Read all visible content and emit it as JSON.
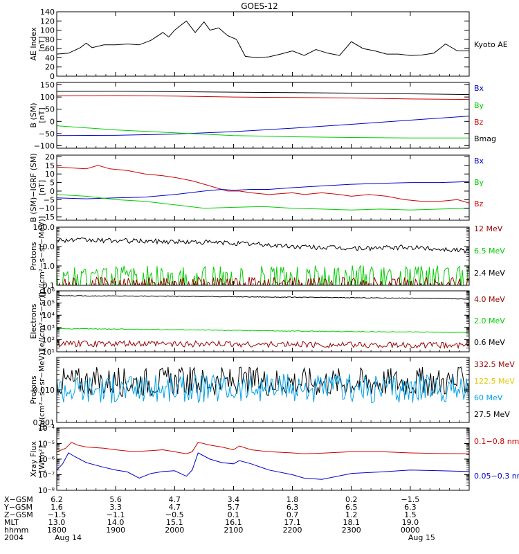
{
  "chart_data": {
    "title": "GOES-12",
    "type": "line",
    "panels": [
      {
        "id": "ae",
        "ylabel": [
          "AE Index",
          "[nT]"
        ],
        "scale": "linear",
        "ylim": [
          0,
          140
        ],
        "ticks": [
          0,
          20,
          40,
          60,
          80,
          100,
          120,
          140
        ],
        "tick_labels": [
          "0",
          "20",
          "40",
          "60",
          "80",
          "100",
          "120",
          "140"
        ],
        "legend": [
          {
            "name": "Kyoto AE",
            "color": "#000000"
          }
        ],
        "series": [
          {
            "name": "Kyoto AE",
            "color": "#000000",
            "x": [
              0,
              0.2,
              0.4,
              0.5,
              0.6,
              0.8,
              1.0,
              1.2,
              1.4,
              1.6,
              1.8,
              1.9,
              2.0,
              2.1,
              2.2,
              2.35,
              2.5,
              2.6,
              2.75,
              2.9,
              3.05,
              3.2,
              3.4,
              3.6,
              3.8,
              4.0,
              4.2,
              4.4,
              4.6,
              4.8,
              5.0,
              5.2,
              5.4,
              5.6,
              5.8,
              6.0,
              6.2,
              6.4,
              6.6,
              6.8,
              7.0
            ],
            "y": [
              48,
              50,
              62,
              72,
              62,
              68,
              68,
              70,
              68,
              78,
              95,
              85,
              100,
              110,
              120,
              95,
              118,
              100,
              105,
              88,
              80,
              43,
              40,
              42,
              48,
              55,
              45,
              58,
              50,
              45,
              75,
              60,
              55,
              48,
              48,
              45,
              46,
              50,
              70,
              55,
              55
            ]
          }
        ]
      },
      {
        "id": "b",
        "ylabel": [
          "B (SM)",
          "[nT]"
        ],
        "scale": "linear",
        "ylim": [
          -110,
          160
        ],
        "ticks": [
          -100,
          -50,
          0,
          50,
          100,
          150
        ],
        "tick_labels": [
          "−100",
          "−50",
          "0",
          "50",
          "100",
          "150"
        ],
        "legend": [
          {
            "name": "Bx",
            "color": "#0000cc"
          },
          {
            "name": "By",
            "color": "#00cc00"
          },
          {
            "name": "Bz",
            "color": "#cc0000"
          },
          {
            "name": "Bmag",
            "color": "#000000"
          }
        ],
        "series": [
          {
            "name": "Bmag",
            "color": "#000000",
            "x": [
              0,
              1,
              2,
              3,
              4,
              5,
              6,
              7
            ],
            "y": [
              123,
              124,
              122,
              120,
              118,
              116,
              113,
              110
            ]
          },
          {
            "name": "Bz",
            "color": "#cc0000",
            "x": [
              0,
              1,
              2,
              3,
              4,
              5,
              6,
              7
            ],
            "y": [
              105,
              106,
              104,
              100,
              98,
              96,
              92,
              90
            ]
          },
          {
            "name": "Bx",
            "color": "#0000cc",
            "x": [
              0,
              1,
              2,
              3,
              4,
              5,
              6,
              7
            ],
            "y": [
              -58,
              -57,
              -52,
              -42,
              -28,
              -12,
              5,
              22
            ]
          },
          {
            "name": "By",
            "color": "#00cc00",
            "x": [
              0,
              1,
              2,
              3,
              4,
              5,
              6,
              7
            ],
            "y": [
              -18,
              -35,
              -47,
              -58,
              -63,
              -66,
              -68,
              -68
            ]
          }
        ]
      },
      {
        "id": "db",
        "ylabel": [
          "B (SM)−IGRF (SM)",
          "[nT]"
        ],
        "scale": "linear",
        "ylim": [
          -17,
          21
        ],
        "ticks": [
          -15,
          -10,
          -5,
          0,
          5,
          10,
          15,
          20
        ],
        "tick_labels": [
          "−15",
          "−10",
          "−5",
          "0",
          "5",
          "10",
          "15",
          "20"
        ],
        "legend": [
          {
            "name": "Bx",
            "color": "#0000cc"
          },
          {
            "name": "By",
            "color": "#00cc00"
          },
          {
            "name": "Bz",
            "color": "#cc0000"
          }
        ],
        "series": [
          {
            "name": "Bz",
            "color": "#cc0000",
            "x": [
              0,
              0.5,
              0.7,
              0.9,
              1.2,
              1.5,
              1.8,
              2.0,
              2.3,
              2.6,
              2.8,
              2.9,
              3.1,
              3.3,
              3.6,
              4.0,
              4.2,
              4.5,
              4.8,
              5.0,
              5.3,
              5.6,
              5.9,
              6.2,
              6.5,
              6.8,
              7.0
            ],
            "y": [
              14,
              13,
              15,
              13,
              12,
              10,
              9,
              8,
              6,
              3,
              1,
              0,
              0,
              -1,
              -2,
              -1,
              -2,
              -1,
              -2,
              -3,
              -2,
              -3,
              -5,
              -6,
              -6,
              -5,
              -7
            ]
          },
          {
            "name": "Bx",
            "color": "#0000cc",
            "x": [
              0,
              0.5,
              1.0,
              1.5,
              2.0,
              2.5,
              2.8,
              3.0,
              3.3,
              3.6,
              4.0,
              4.5,
              5.0,
              5.5,
              6.0,
              6.5,
              7.0
            ],
            "y": [
              -4,
              -4.5,
              -4,
              -3.5,
              -2,
              0,
              1,
              0.5,
              1,
              1,
              2,
              3,
              4,
              4.5,
              5,
              5,
              5.5
            ]
          },
          {
            "name": "By",
            "color": "#00cc00",
            "x": [
              0,
              0.5,
              1.0,
              1.5,
              2.0,
              2.5,
              3.0,
              3.5,
              4.0,
              4.5,
              5.0,
              5.5,
              6.0,
              6.5,
              7.0
            ],
            "y": [
              -2,
              -3,
              -5,
              -6,
              -8,
              -10,
              -9.5,
              -9,
              -10,
              -10.5,
              -11,
              -10.5,
              -11,
              -10.5,
              -10
            ]
          }
        ]
      },
      {
        "id": "protons_low",
        "ylabel": [
          "Protons",
          "[p/(cm²−s−sr−MeV)]"
        ],
        "scale": "log",
        "ylim": [
          0.1,
          100
        ],
        "ticks": [
          0.1,
          1,
          10,
          100
        ],
        "tick_labels": [
          "0.1",
          "1.0",
          "10.0",
          "100.0"
        ],
        "legend": [
          {
            "name": "12 MeV",
            "color": "#990000"
          },
          {
            "name": "6.5 MeV",
            "color": "#00cc00"
          },
          {
            "name": "2.4 MeV",
            "color": "#000000"
          }
        ],
        "series": [
          {
            "name": "2.4 MeV",
            "color": "#000000",
            "x": [
              0,
              1,
              2,
              3,
              4,
              5,
              6,
              7
            ],
            "y": [
              22,
              20,
              18,
              15,
              10,
              8,
              9,
              6
            ]
          },
          {
            "name": "6.5 MeV",
            "color": "#00cc00",
            "x": [
              0,
              7
            ],
            "y": [
              0.3,
              0.3
            ]
          },
          {
            "name": "12 MeV",
            "color": "#990000",
            "x": [
              0,
              7
            ],
            "y": [
              0.12,
              0.12
            ]
          }
        ]
      },
      {
        "id": "electrons",
        "ylabel": [
          "Electrons",
          "[e/(cm²−s−sr)]"
        ],
        "scale": "log",
        "ylim": [
          10,
          1000000
        ],
        "ticks": [
          10,
          100,
          1000,
          10000,
          100000,
          1000000
        ],
        "tick_labels": [
          "10¹",
          "10²",
          "10³",
          "10⁴",
          "10⁵",
          "10⁶"
        ],
        "legend": [
          {
            "name": "4.0 MeV",
            "color": "#990000"
          },
          {
            "name": "2.0 MeV",
            "color": "#00cc00"
          },
          {
            "name": "0.6 MeV",
            "color": "#000000"
          }
        ],
        "series": [
          {
            "name": "0.6 MeV",
            "color": "#000000",
            "x": [
              0,
              2,
              4,
              6,
              7
            ],
            "y": [
              400000,
              360000,
              300000,
              250000,
              220000
            ]
          },
          {
            "name": "2.0 MeV",
            "color": "#00cc00",
            "x": [
              0,
              2,
              4,
              6,
              7
            ],
            "y": [
              800,
              650,
              500,
              420,
              380
            ]
          },
          {
            "name": "4.0 MeV",
            "color": "#990000",
            "x": [
              0,
              2,
              4,
              6,
              7
            ],
            "y": [
              45,
              45,
              40,
              35,
              35
            ]
          }
        ]
      },
      {
        "id": "protons_high",
        "ylabel": [
          "Protons",
          "[p/(cm²−s−sr−MeV)]"
        ],
        "scale": "log",
        "ylim": [
          0.001,
          0.1
        ],
        "ticks": [
          0.001,
          0.01,
          0.1
        ],
        "tick_labels": [
          "0.001",
          "0.010",
          ""
        ],
        "legend": [
          {
            "name": "332.5 MeV",
            "color": "#990000"
          },
          {
            "name": "122.5 MeV",
            "color": "#e6c800"
          },
          {
            "name": "60 MeV",
            "color": "#00a0e6"
          },
          {
            "name": "27.5 MeV",
            "color": "#000000"
          }
        ],
        "series": [
          {
            "name": "27.5 MeV",
            "color": "#000000",
            "x": [
              0,
              7
            ],
            "y": [
              0.018,
              0.018
            ]
          },
          {
            "name": "60 MeV",
            "color": "#00a0e6",
            "x": [
              0,
              7
            ],
            "y": [
              0.011,
              0.011
            ]
          }
        ]
      },
      {
        "id": "xray",
        "ylabel": [
          "Xray Flux",
          "[W/m²]"
        ],
        "scale": "log",
        "ylim": [
          1e-08,
          0.0001
        ],
        "ticks": [
          1e-08,
          1e-07,
          1e-06,
          1e-05,
          0.0001
        ],
        "tick_labels": [
          "10⁻⁸",
          "10⁻⁷",
          "10⁻⁶",
          "10⁻⁵",
          "10⁻⁴"
        ],
        "legend": [
          {
            "name": "0.1−0.8 nm",
            "color": "#cc0000"
          },
          {
            "name": "0.05−0.3 nm",
            "color": "#0000cc"
          }
        ],
        "series": [
          {
            "name": "0.1−0.8 nm",
            "color": "#cc0000",
            "x": [
              0,
              0.15,
              0.25,
              0.35,
              0.5,
              0.8,
              1.0,
              1.3,
              1.6,
              1.8,
              2.0,
              2.2,
              2.3,
              2.4,
              2.6,
              2.8,
              3.0,
              3.1,
              3.3,
              3.6,
              4.0,
              4.2,
              4.5,
              5.0,
              5.5,
              6.0,
              6.5,
              7.0
            ],
            "y": [
              3e-06,
              5e-06,
              1.2e-05,
              8e-06,
              6e-06,
              5e-06,
              4e-06,
              3e-06,
              3.5e-06,
              4e-06,
              3e-06,
              2.2e-06,
              3e-06,
              1.2e-05,
              8e-06,
              6e-06,
              4e-06,
              7e-06,
              4e-06,
              3e-06,
              2.5e-06,
              2.2e-06,
              2.4e-06,
              3e-06,
              3e-06,
              2.5e-06,
              2.3e-06,
              2.2e-06
            ]
          },
          {
            "name": "0.05−0.3 nm",
            "color": "#0000cc",
            "x": [
              0,
              0.1,
              0.2,
              0.3,
              0.5,
              0.8,
              1.0,
              1.2,
              1.4,
              1.6,
              1.8,
              2.0,
              2.2,
              2.3,
              2.4,
              2.6,
              2.8,
              3.0,
              3.1,
              3.3,
              3.6,
              4.0,
              4.2,
              4.5,
              5.0,
              5.5,
              6.0,
              6.5,
              7.0
            ],
            "y": [
              2e-07,
              5e-07,
              2.5e-06,
              1.5e-06,
              6e-07,
              3e-07,
              2e-07,
              1.5e-07,
              6e-08,
              1.2e-07,
              1.6e-07,
              1.8e-07,
              8e-08,
              2e-07,
              2.5e-06,
              1e-06,
              6e-07,
              5e-07,
              8e-07,
              5e-07,
              2e-07,
              1e-07,
              6e-08,
              5e-08,
              1.2e-07,
              1.5e-07,
              2e-07,
              1.8e-07,
              1.6e-07
            ]
          }
        ]
      }
    ],
    "x_axis": {
      "range": [
        0,
        7
      ],
      "tick_x": [
        0,
        1,
        2,
        3,
        4,
        5,
        6,
        7
      ],
      "rows": [
        {
          "label": "X−GSM",
          "values": [
            "6.2",
            "5.6",
            "4.7",
            "3.4",
            "1.8",
            "0.2",
            "−1.5"
          ]
        },
        {
          "label": "Y−GSM",
          "values": [
            "1.6",
            "3.3",
            "4.7",
            "5.7",
            "6.3",
            "6.5",
            "6.3"
          ]
        },
        {
          "label": "Z−GSM",
          "values": [
            "−1.5",
            "−1.1",
            "−0.5",
            "0.1",
            "0.7",
            "1.2",
            "1.5"
          ]
        },
        {
          "label": "MLT",
          "values": [
            "13.0",
            "14.0",
            "15.1",
            "16.1",
            "17.1",
            "18.1",
            "19.0"
          ]
        },
        {
          "label": "hhmm",
          "values": [
            "1800",
            "1900",
            "2000",
            "2100",
            "2200",
            "2300",
            "0000"
          ]
        },
        {
          "label": "2004",
          "values": [
            "Aug 14",
            "",
            "",
            "",
            "",
            "",
            "Aug 15"
          ]
        }
      ]
    }
  }
}
